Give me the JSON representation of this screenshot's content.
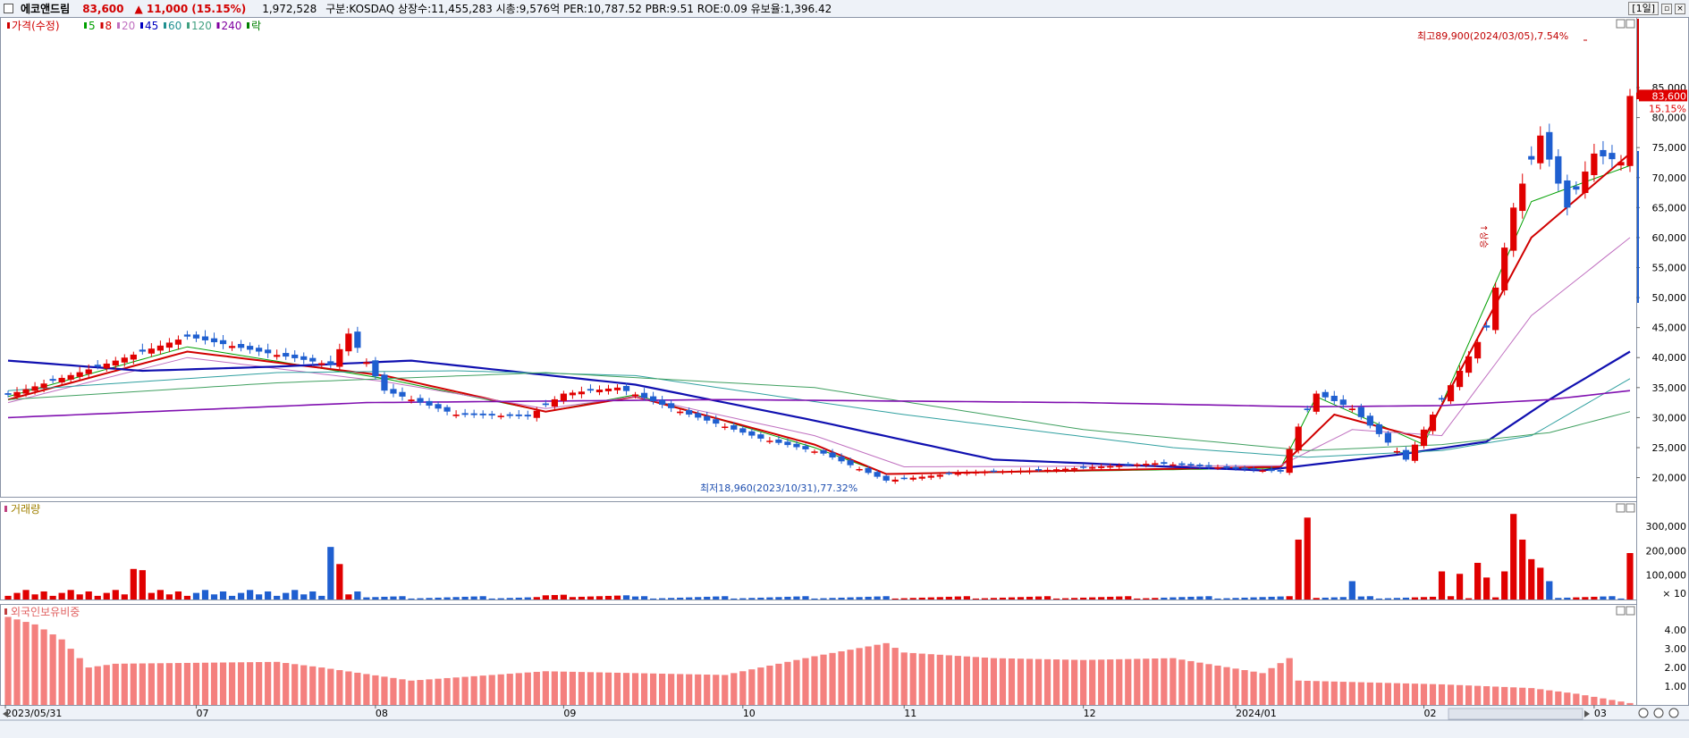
{
  "header": {
    "stock_name": "에코앤드림",
    "price": "83,600",
    "change": "▲ 11,000",
    "change_pct": "(15.15%)",
    "volume": "1,972,528",
    "info": "구분:KOSDAQ 상장수:11,455,283 시총:9,576억 PER:10,787.52 PBR:9.51 ROE:0.09 유보율:1,396.42",
    "period_button": "[1일]",
    "up_color": "#e00000",
    "down_color": "#1f5fd0"
  },
  "price_panel": {
    "legend": [
      {
        "label": "가격(수정)",
        "color": "#d00000"
      },
      {
        "label": "5",
        "color": "#00a000"
      },
      {
        "label": "8",
        "color": "#d00000"
      },
      {
        "label": "20",
        "color": "#c070c0"
      },
      {
        "label": "45",
        "color": "#0000c0"
      },
      {
        "label": "60",
        "color": "#209090"
      },
      {
        "label": "120",
        "color": "#40a080"
      },
      {
        "label": "240",
        "color": "#8000a0"
      },
      {
        "label": "락",
        "color": "#008000"
      }
    ],
    "high_annotation": "최고89,900(2024/03/05),7.54%",
    "low_annotation": "최저18,960(2023/10/31),77.32%",
    "current_price_label": "83,600",
    "current_pct_label": "15.15%",
    "event_marker": "↑상승",
    "y_ticks": [
      "85,000",
      "80,000",
      "75,000",
      "70,000",
      "65,000",
      "60,000",
      "55,000",
      "50,000",
      "45,000",
      "40,000",
      "35,000",
      "30,000",
      "25,000",
      "20,000"
    ]
  },
  "volume_panel": {
    "title": "거래량",
    "y_ticks": [
      "300,000",
      "200,000",
      "100,000"
    ],
    "unit_label": "× 10"
  },
  "foreign_panel": {
    "title": "외국인보유비중",
    "y_ticks": [
      "4.00",
      "3.00",
      "2.00",
      "1.00"
    ]
  },
  "x_axis": {
    "labels": [
      "2023/05/31",
      "07",
      "08",
      "09",
      "10",
      "11",
      "12",
      "2024/01",
      "02",
      "03"
    ]
  },
  "chart_data": {
    "type": "bar",
    "title": "",
    "x_labels": [
      "2023/05/31",
      "07",
      "08",
      "09",
      "10",
      "11",
      "12",
      "2024/01",
      "02",
      "03"
    ],
    "price_range": [
      18000,
      92000
    ],
    "close_anchors": [
      [
        0,
        33800
      ],
      [
        10,
        38500
      ],
      [
        20,
        43500
      ],
      [
        28,
        41000
      ],
      [
        36,
        38800
      ],
      [
        38,
        44000
      ],
      [
        42,
        34500
      ],
      [
        50,
        30500
      ],
      [
        58,
        30200
      ],
      [
        62,
        34000
      ],
      [
        68,
        35000
      ],
      [
        75,
        31000
      ],
      [
        84,
        26500
      ],
      [
        91,
        24000
      ],
      [
        98,
        19500
      ],
      [
        106,
        20800
      ],
      [
        116,
        21300
      ],
      [
        128,
        22400
      ],
      [
        142,
        21000
      ],
      [
        144,
        28500
      ],
      [
        146,
        34000
      ],
      [
        150,
        31500
      ],
      [
        156,
        23000
      ],
      [
        160,
        33000
      ],
      [
        165,
        45000
      ],
      [
        168,
        65000
      ],
      [
        171,
        77000
      ],
      [
        174,
        65000
      ],
      [
        177,
        74000
      ],
      [
        180,
        72600
      ],
      [
        181,
        83600
      ]
    ],
    "ma_anchors": {
      "ma5": [
        [
          0,
          33500
        ],
        [
          20,
          41800
        ],
        [
          42,
          36500
        ],
        [
          60,
          31000
        ],
        [
          70,
          33800
        ],
        [
          90,
          25000
        ],
        [
          98,
          20600
        ],
        [
          142,
          21600
        ],
        [
          146,
          33500
        ],
        [
          158,
          25500
        ],
        [
          170,
          66000
        ],
        [
          181,
          72000
        ]
      ],
      "ma8": [
        [
          0,
          33000
        ],
        [
          20,
          41000
        ],
        [
          42,
          37000
        ],
        [
          60,
          31000
        ],
        [
          70,
          33500
        ],
        [
          90,
          25500
        ],
        [
          98,
          20600
        ],
        [
          142,
          21800
        ],
        [
          148,
          30500
        ],
        [
          158,
          26500
        ],
        [
          170,
          60000
        ],
        [
          181,
          74000
        ]
      ],
      "ma20": [
        [
          0,
          32500
        ],
        [
          20,
          40000
        ],
        [
          42,
          36000
        ],
        [
          60,
          31500
        ],
        [
          70,
          33500
        ],
        [
          90,
          27000
        ],
        [
          100,
          21800
        ],
        [
          142,
          22000
        ],
        [
          150,
          28000
        ],
        [
          160,
          27000
        ],
        [
          170,
          47000
        ],
        [
          181,
          60000
        ]
      ],
      "ma45": [
        [
          0,
          39500
        ],
        [
          15,
          37800
        ],
        [
          30,
          38500
        ],
        [
          45,
          39500
        ],
        [
          70,
          35500
        ],
        [
          90,
          29500
        ],
        [
          110,
          23000
        ],
        [
          140,
          21200
        ],
        [
          155,
          23800
        ],
        [
          165,
          26000
        ],
        [
          172,
          33000
        ],
        [
          181,
          41000
        ]
      ],
      "ma60": [
        [
          0,
          34500
        ],
        [
          30,
          37500
        ],
        [
          50,
          37800
        ],
        [
          70,
          37000
        ],
        [
          100,
          30500
        ],
        [
          130,
          25000
        ],
        [
          145,
          23400
        ],
        [
          160,
          24500
        ],
        [
          170,
          27000
        ],
        [
          181,
          36500
        ]
      ],
      "ma120": [
        [
          0,
          33000
        ],
        [
          30,
          35800
        ],
        [
          60,
          37500
        ],
        [
          90,
          35000
        ],
        [
          120,
          28000
        ],
        [
          145,
          24500
        ],
        [
          160,
          25500
        ],
        [
          172,
          27500
        ],
        [
          181,
          31000
        ]
      ],
      "ma240": [
        [
          0,
          30000
        ],
        [
          40,
          32500
        ],
        [
          80,
          33000
        ],
        [
          120,
          32500
        ],
        [
          145,
          31800
        ],
        [
          160,
          32000
        ],
        [
          172,
          33000
        ],
        [
          181,
          34500
        ]
      ]
    },
    "volume_range": [
      0,
      380000
    ],
    "volume_peaks": [
      [
        14,
        125000
      ],
      [
        15,
        120000
      ],
      [
        36,
        215000
      ],
      [
        37,
        145000
      ],
      [
        144,
        245000
      ],
      [
        145,
        335000
      ],
      [
        150,
        75000
      ],
      [
        160,
        115000
      ],
      [
        162,
        105000
      ],
      [
        164,
        150000
      ],
      [
        165,
        90000
      ],
      [
        167,
        115000
      ],
      [
        168,
        350000
      ],
      [
        169,
        245000
      ],
      [
        170,
        165000
      ],
      [
        171,
        130000
      ],
      [
        172,
        75000
      ],
      [
        181,
        190000
      ]
    ],
    "foreign_range": [
      0,
      5.2
    ],
    "foreign_anchors": [
      [
        0,
        4.7
      ],
      [
        3,
        4.3
      ],
      [
        6,
        3.5
      ],
      [
        9,
        2.0
      ],
      [
        12,
        2.2
      ],
      [
        30,
        2.3
      ],
      [
        35,
        2.0
      ],
      [
        45,
        1.3
      ],
      [
        60,
        1.8
      ],
      [
        80,
        1.6
      ],
      [
        90,
        2.6
      ],
      [
        98,
        3.3
      ],
      [
        100,
        2.8
      ],
      [
        110,
        2.5
      ],
      [
        120,
        2.4
      ],
      [
        130,
        2.5
      ],
      [
        140,
        1.7
      ],
      [
        143,
        2.5
      ],
      [
        144,
        1.3
      ],
      [
        160,
        1.1
      ],
      [
        170,
        0.9
      ],
      [
        175,
        0.6
      ],
      [
        181,
        0.1
      ]
    ]
  }
}
